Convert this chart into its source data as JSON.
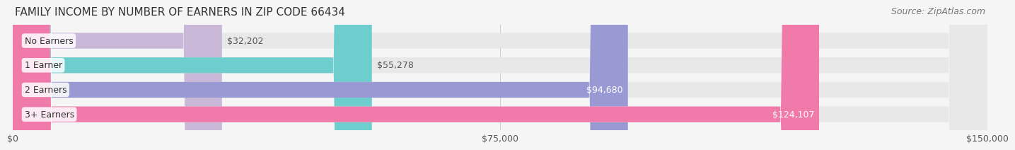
{
  "title": "FAMILY INCOME BY NUMBER OF EARNERS IN ZIP CODE 66434",
  "source": "Source: ZipAtlas.com",
  "categories": [
    "No Earners",
    "1 Earner",
    "2 Earners",
    "3+ Earners"
  ],
  "values": [
    32202,
    55278,
    94680,
    124107
  ],
  "labels": [
    "$32,202",
    "$55,278",
    "$94,680",
    "$124,107"
  ],
  "bar_colors": [
    "#c9b8d8",
    "#6ecece",
    "#9999d4",
    "#f07aaa"
  ],
  "bar_bg_color": "#e8e8e8",
  "label_colors": [
    "#555555",
    "#555555",
    "#ffffff",
    "#ffffff"
  ],
  "xlim": [
    0,
    150000
  ],
  "xticks": [
    0,
    75000,
    150000
  ],
  "xticklabels": [
    "$0",
    "$75,000",
    "$150,000"
  ],
  "title_fontsize": 11,
  "source_fontsize": 9,
  "tick_fontsize": 9,
  "bar_label_fontsize": 9,
  "category_fontsize": 9,
  "fig_bg_color": "#f5f5f5",
  "bar_bg_alpha": 1.0,
  "bar_height": 0.62
}
